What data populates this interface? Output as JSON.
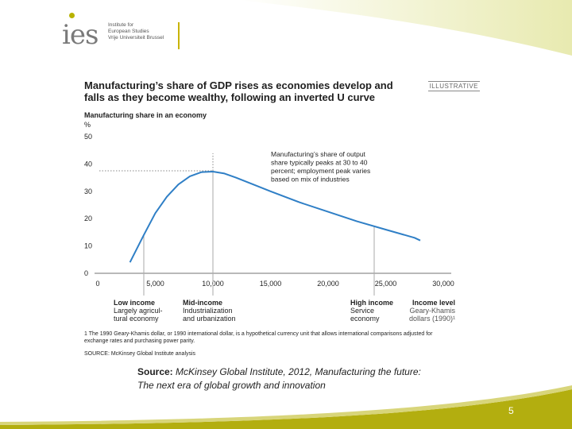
{
  "logo": {
    "mark": "ies",
    "lines": [
      "Institute for",
      "European Studies",
      "Vrije Universiteit Brussel"
    ]
  },
  "chart": {
    "title": "Manufacturing’s share of GDP rises as economies develop and falls as they become wealthy, following an inverted U curve",
    "tag": "ILLUSTRATIVE",
    "subtitle": "Manufacturing share in an economy",
    "unit": "%",
    "footnote": "1 The 1990 Geary-Khamis dollar, or 1990 international dollar, is a hypothetical currency unit that allows international comparisons adjusted for exchange rates and purchasing power parity.",
    "source": "SOURCE: McKinsey Global Institute analysis"
  },
  "chart_data": {
    "type": "line",
    "x": [
      2800,
      4000,
      5000,
      6000,
      7000,
      8000,
      9000,
      10000,
      11000,
      12000,
      13500,
      15000,
      17500,
      20000,
      22500,
      25000,
      27500,
      28000
    ],
    "y": [
      4,
      14,
      22,
      28,
      32.5,
      35.5,
      37,
      37.2,
      36.5,
      35,
      32.5,
      30,
      26,
      22.5,
      19,
      16,
      13,
      12
    ],
    "xlim": [
      0,
      30000
    ],
    "ylim": [
      0,
      50
    ],
    "x_ticks": [
      "0",
      "5,000",
      "10,000",
      "15,000",
      "20,000",
      "25,000",
      "30,000"
    ],
    "y_ticks": [
      "0",
      "10",
      "20",
      "30",
      "40",
      "50"
    ],
    "xlabel": [
      "Income level",
      "Geary-Khamis",
      "dollars (1990)¹"
    ],
    "ylabel": "%",
    "grid": false,
    "peak": {
      "x": 10000,
      "y": 37.5
    },
    "annotation": [
      "Manufacturing’s share of output",
      "share typically peaks at 30 to 40",
      "percent; employment peak varies",
      "based on mix of industries"
    ],
    "stages": [
      {
        "x": 4000,
        "title": "Low income",
        "lines": [
          "Largely agricul-",
          "tural economy"
        ]
      },
      {
        "x": 10000,
        "title": "Mid-income",
        "lines": [
          "Industrialization",
          "and urbanization"
        ]
      },
      {
        "x": 24000,
        "title": "High income",
        "lines": [
          "Service",
          "economy"
        ]
      }
    ],
    "colors": {
      "line": "#2f7fc6",
      "peak": "#888888",
      "stage": "#aaaaaa"
    }
  },
  "caption": {
    "label": "Source:",
    "text": " McKinsey Global Institute, 2012, Manufacturing the future: The next era of global growth and innovation"
  },
  "page_number": "5"
}
